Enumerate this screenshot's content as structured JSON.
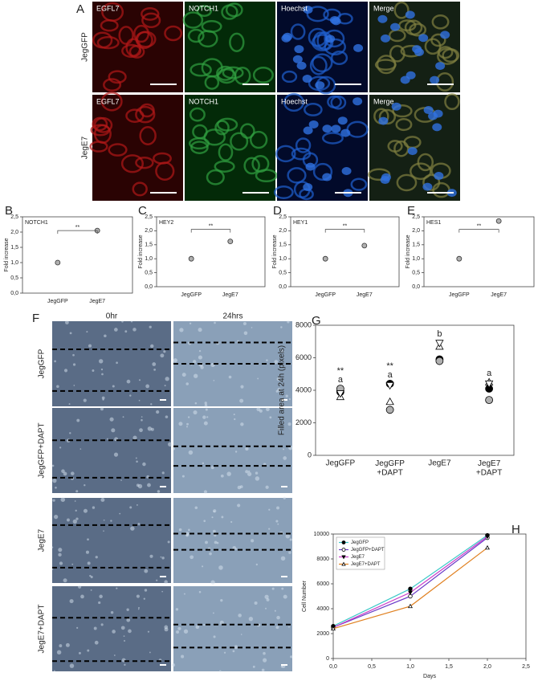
{
  "figure": {
    "panel_labels": [
      "A",
      "B",
      "C",
      "D",
      "E",
      "F",
      "G",
      "H"
    ],
    "panel_a": {
      "columns": [
        "EGFL7",
        "NOTCH1",
        "Hoechst",
        "Merge"
      ],
      "rows": [
        "JegGFP",
        "JegE7"
      ]
    },
    "panel_f": {
      "columns": [
        "0hr",
        "24hrs"
      ],
      "rows": [
        "JegGFP",
        "JegGFP+DAPT",
        "JegE7",
        "JegE7+DAPT"
      ]
    }
  },
  "chart_data": [
    {
      "type": "scatter",
      "title": "NOTCH1",
      "ylabel": "Fold increase",
      "categories": [
        "JegGFP",
        "JegE7"
      ],
      "values": [
        1.0,
        2.05
      ],
      "color": "#b0b0b0",
      "ylim": [
        0,
        2.5
      ],
      "yticks": [
        {
          "value": 0,
          "label": "0,0"
        },
        {
          "value": 0.5,
          "label": "0,5"
        },
        {
          "value": 1,
          "label": "1,0"
        },
        {
          "value": 1.5,
          "label": "1,5"
        },
        {
          "value": 2,
          "label": "2,0"
        },
        {
          "value": 2.5,
          "label": "2,5"
        }
      ],
      "annotation": "**"
    },
    {
      "type": "scatter",
      "title": "HEY2",
      "ylabel": "Fold increase",
      "categories": [
        "JegGFP",
        "JegE7"
      ],
      "values": [
        1.0,
        1.62
      ],
      "color": "#b0b0b0",
      "ylim": [
        0,
        2.5
      ],
      "yticks": [
        {
          "value": 0,
          "label": "0,0"
        },
        {
          "value": 0.5,
          "label": "0,5"
        },
        {
          "value": 1,
          "label": "1,0"
        },
        {
          "value": 1.5,
          "label": "1,5"
        },
        {
          "value": 2,
          "label": "2,0"
        },
        {
          "value": 2.5,
          "label": "2,5"
        }
      ],
      "annotation": "**"
    },
    {
      "type": "scatter",
      "title": "HEY1",
      "ylabel": "Fold increase",
      "categories": [
        "JegGFP",
        "JegE7"
      ],
      "values": [
        1.0,
        1.47
      ],
      "color": "#b0b0b0",
      "ylim": [
        0,
        2.5
      ],
      "yticks": [
        {
          "value": 0,
          "label": "0,0"
        },
        {
          "value": 0.5,
          "label": "0,5"
        },
        {
          "value": 1,
          "label": "1,0"
        },
        {
          "value": 1.5,
          "label": "1,5"
        },
        {
          "value": 2,
          "label": "2,0"
        },
        {
          "value": 2.5,
          "label": "2,5"
        }
      ],
      "annotation": "**"
    },
    {
      "type": "scatter",
      "title": "HES1",
      "ylabel": "Fold increase",
      "categories": [
        "JegGFP",
        "JegE7"
      ],
      "values": [
        1.0,
        2.35
      ],
      "color": "#b0b0b0",
      "ylim": [
        0,
        2.5
      ],
      "yticks": [
        {
          "value": 0,
          "label": "0,0"
        },
        {
          "value": 0.5,
          "label": "0,5"
        },
        {
          "value": 1,
          "label": "1,0"
        },
        {
          "value": 1.5,
          "label": "1,5"
        },
        {
          "value": 2,
          "label": "2,0"
        },
        {
          "value": 2.5,
          "label": "2,5"
        }
      ],
      "annotation": "**"
    },
    {
      "type": "scatter",
      "ylabel": "Filled area at 24h (pixels)",
      "categories": [
        "JegGFP",
        "JegGFP +DAPT",
        "JegE7",
        "JegE7 +DAPT"
      ],
      "series": [
        {
          "marker": "circle",
          "color": "#000000",
          "values": [
            3900,
            4400,
            5900,
            4100
          ]
        },
        {
          "marker": "circle",
          "color": "#b0b0b0",
          "values": [
            4100,
            2800,
            5800,
            3400
          ]
        },
        {
          "marker": "triangle-up",
          "color": "#ffffff",
          "values": [
            3600,
            3300,
            6700,
            4500
          ]
        },
        {
          "marker": "triangle-down",
          "color": "#ffffff",
          "values": [
            3800,
            4300,
            6900,
            4400
          ]
        }
      ],
      "significance": [
        "**",
        "**",
        null,
        null
      ],
      "groups": [
        "a",
        "a",
        "b",
        "a"
      ],
      "ylim": [
        0,
        8000
      ],
      "yticks": [
        0,
        2000,
        4000,
        6000,
        8000
      ]
    },
    {
      "type": "line",
      "xlabel": "Days",
      "ylabel": "Cell Number",
      "x": [
        0,
        1,
        2
      ],
      "series": [
        {
          "name": "JegGFP",
          "color": "#3cc8c8",
          "marker": "circle",
          "fill": "#000000",
          "values": [
            2600,
            5600,
            9900
          ]
        },
        {
          "name": "JegGFP+DAPT",
          "color": "#6a3cc8",
          "marker": "circle",
          "fill": "#ffffff",
          "values": [
            2500,
            5000,
            9700
          ]
        },
        {
          "name": "JegE7",
          "color": "#c83cc8",
          "marker": "triangle-down",
          "fill": "#000000",
          "values": [
            2500,
            5300,
            9800
          ]
        },
        {
          "name": "JegE7+DAPT",
          "color": "#e08020",
          "marker": "triangle-up",
          "fill": "#ffffff",
          "values": [
            2400,
            4200,
            8900
          ]
        }
      ],
      "xlim": [
        0,
        2.5
      ],
      "xticks": [
        {
          "value": 0,
          "label": "0,0"
        },
        {
          "value": 0.5,
          "label": "0,5"
        },
        {
          "value": 1,
          "label": "1,0"
        },
        {
          "value": 1.5,
          "label": "1,5"
        },
        {
          "value": 2,
          "label": "2,0"
        },
        {
          "value": 2.5,
          "label": "2,5"
        }
      ],
      "ylim": [
        0,
        10000
      ],
      "yticks": [
        0,
        2000,
        4000,
        6000,
        8000,
        10000
      ],
      "legend": "upper left"
    }
  ]
}
